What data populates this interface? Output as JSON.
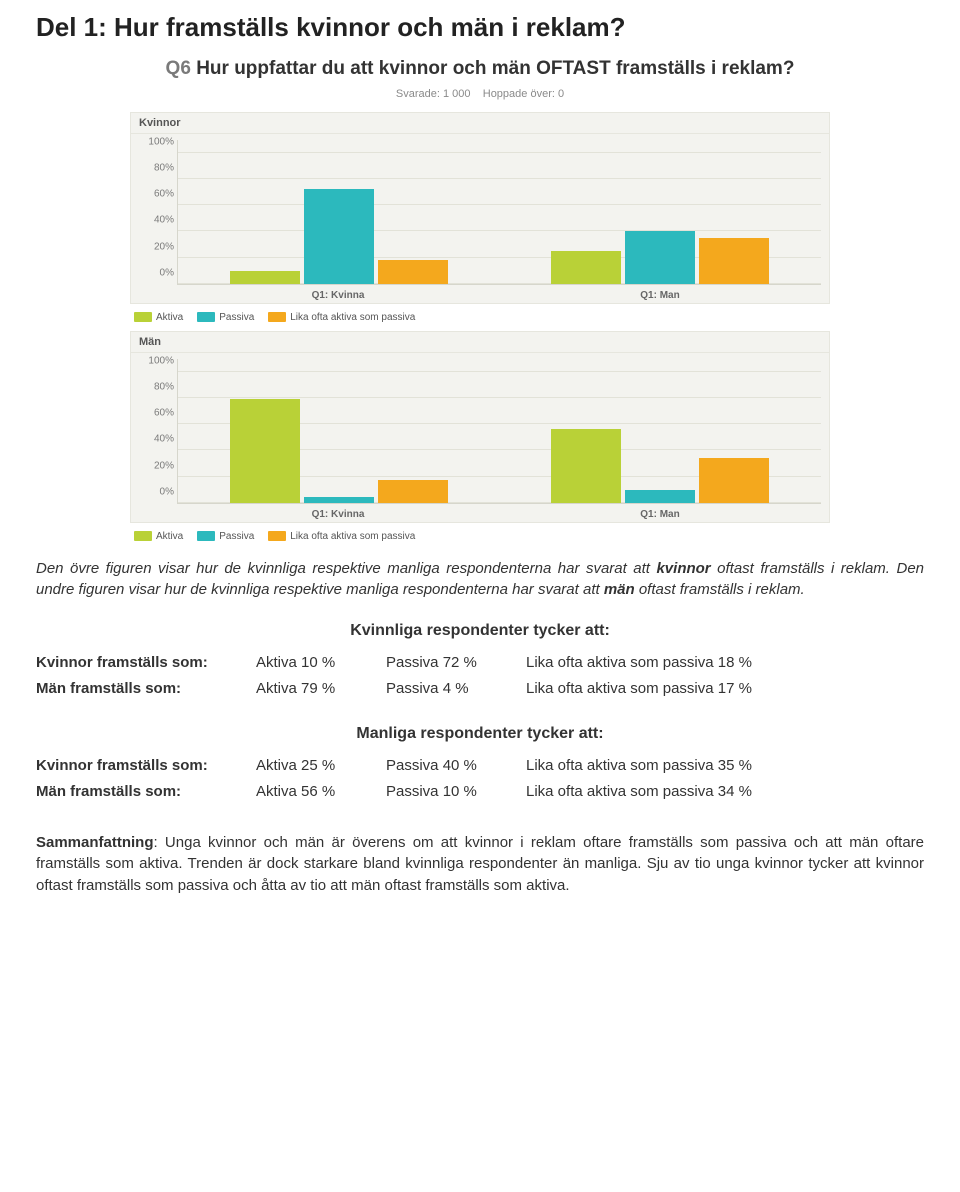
{
  "page_title": "Del 1: Hur framställs kvinnor och män i reklam?",
  "question_num": "Q6",
  "question_text": "Hur uppfattar du att kvinnor och män OFTAST framställs i reklam?",
  "meta_responded_label": "Svarade:",
  "meta_responded_value": "1 000",
  "meta_skipped_label": "Hoppade över:",
  "meta_skipped_value": "0",
  "series": {
    "aktiva": {
      "label": "Aktiva",
      "color": "#b9d137"
    },
    "passiva": {
      "label": "Passiva",
      "color": "#2cb9bd"
    },
    "lika": {
      "label": "Lika ofta aktiva som passiva",
      "color": "#f4a81d"
    }
  },
  "chart_common": {
    "ylim_max": 110,
    "ticks": [
      0,
      20,
      40,
      60,
      80,
      100
    ],
    "tick_suffix": "%",
    "bg": "#f3f3ef",
    "grid": "#e2e2d8",
    "x_categories": [
      "Q1: Kvinna",
      "Q1: Man"
    ]
  },
  "charts": [
    {
      "label": "Kvinnor",
      "groups": [
        {
          "aktiva": 10,
          "passiva": 72,
          "lika": 18
        },
        {
          "aktiva": 25,
          "passiva": 40,
          "lika": 35
        }
      ]
    },
    {
      "label": "Män",
      "groups": [
        {
          "aktiva": 79,
          "passiva": 4,
          "lika": 17
        },
        {
          "aktiva": 56,
          "passiva": 10,
          "lika": 34
        }
      ]
    }
  ],
  "caption_1_a": "Den övre figuren visar hur de kvinnliga respektive manliga respondenterna har svarat att ",
  "caption_1_b": "kvinnor",
  "caption_1_c": " oftast framställs i reklam.",
  "caption_2_a": "Den undre figuren visar hur de kvinnliga respektive manliga respondenterna har svarat att ",
  "caption_2_b": "män",
  "caption_2_c": " oftast framställs i reklam.",
  "table_a": {
    "heading": "Kvinnliga respondenter tycker att:",
    "rows": [
      {
        "label": "Kvinnor framställs som:",
        "aktiva": "Aktiva 10 %",
        "passiva": "Passiva 72 %",
        "lika": "Lika ofta aktiva som passiva 18 %"
      },
      {
        "label": "Män framställs som:",
        "aktiva": "Aktiva 79 %",
        "passiva": "Passiva 4 %",
        "lika": "Lika ofta aktiva som passiva 17 %"
      }
    ]
  },
  "table_b": {
    "heading": "Manliga respondenter tycker att:",
    "rows": [
      {
        "label": "Kvinnor framställs som:",
        "aktiva": "Aktiva 25 %",
        "passiva": "Passiva 40 %",
        "lika": "Lika ofta aktiva som passiva 35 %"
      },
      {
        "label": "Män framställs som:",
        "aktiva": "Aktiva 56 %",
        "passiva": "Passiva 10 %",
        "lika": "Lika ofta aktiva som passiva 34 %"
      }
    ]
  },
  "summary_label": "Sammanfattning",
  "summary_text": ": Unga kvinnor och män är överens om att kvinnor i reklam oftare framställs som passiva och att män oftare framställs som aktiva. Trenden är dock starkare bland kvinnliga respondenter än manliga. Sju av tio unga kvinnor tycker att kvinnor oftast framställs som passiva och åtta av tio att män oftast framställs som aktiva."
}
